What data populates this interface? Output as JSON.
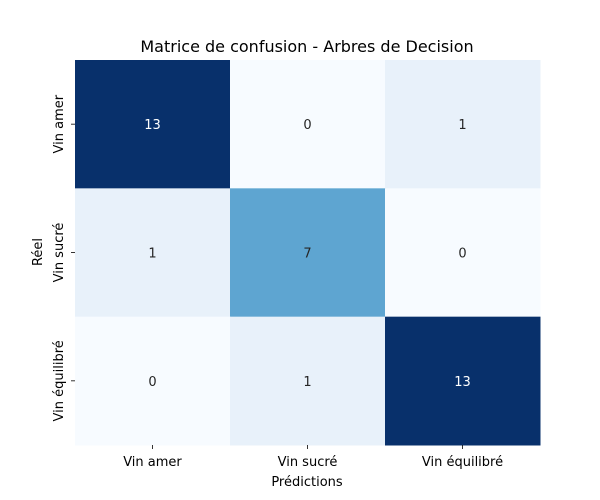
{
  "chart_data": {
    "type": "heatmap",
    "title": "Matrice de confusion - Arbres de Decision",
    "xlabel": "Prédictions",
    "ylabel": "Réel",
    "x_categories": [
      "Vin amer",
      "Vin sucré",
      "Vin équilibré"
    ],
    "y_categories": [
      "Vin amer",
      "Vin sucré",
      "Vin équilibré"
    ],
    "values": [
      [
        13,
        0,
        1
      ],
      [
        1,
        7,
        0
      ],
      [
        0,
        1,
        13
      ]
    ],
    "colormap": "Blues",
    "colorbar": false,
    "value_range": [
      0,
      13
    ]
  }
}
